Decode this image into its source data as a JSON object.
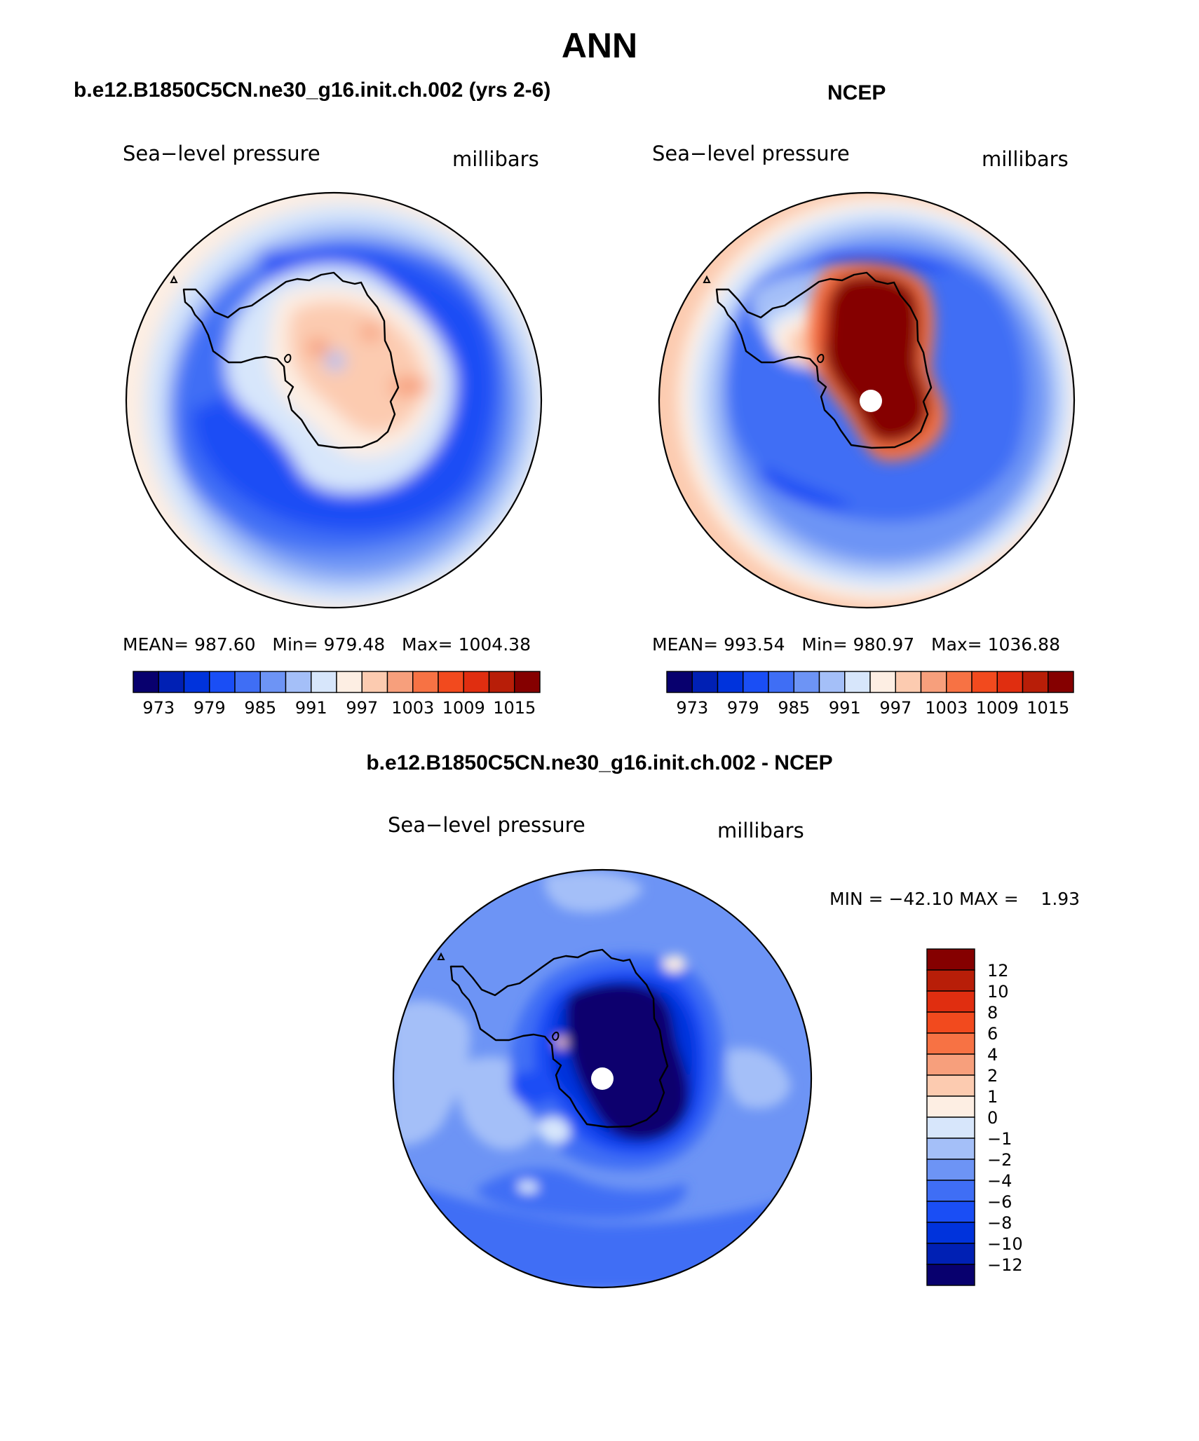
{
  "page_title": "ANN",
  "colors": {
    "scale": [
      "#08006e",
      "#0020b4",
      "#0033dc",
      "#1a4ef5",
      "#3f6ef5",
      "#6d94f5",
      "#a4bff8",
      "#d7e6fb",
      "#fdeee3",
      "#fccbb0",
      "#f79f7c",
      "#f77244",
      "#f24a1e",
      "#e02e10",
      "#b81e08",
      "#850000"
    ]
  },
  "panels": {
    "model": {
      "header": "b.e12.B1850C5CN.ne30_g16.init.ch.002 (yrs 2-6)",
      "left_label": "Sea−level pressure",
      "right_label": "millibars",
      "stats": {
        "mean_label": "MEAN=",
        "mean": "987.60",
        "min_label": "Min=",
        "min": "979.48",
        "max_label": "Max=",
        "max": "1004.38"
      }
    },
    "obs": {
      "header": "NCEP",
      "left_label": "Sea−level pressure",
      "right_label": "millibars",
      "stats": {
        "mean_label": "MEAN=",
        "mean": "993.54",
        "min_label": "Min=",
        "min": "980.97",
        "max_label": "Max=",
        "max": "1036.88"
      }
    },
    "diff": {
      "header": "b.e12.B1850C5CN.ne30_g16.init.ch.002 - NCEP",
      "left_label": "Sea−level pressure",
      "right_label": "millibars",
      "minmax": "MIN = −42.10 MAX =    1.93"
    }
  },
  "colorbar_levels": {
    "horizontal_ticks": [
      "973",
      "979",
      "985",
      "991",
      "997",
      "1003",
      "1009",
      "1015"
    ],
    "vertical_ticks": [
      "12",
      "10",
      "8",
      "6",
      "4",
      "2",
      "1",
      "0",
      "−1",
      "−2",
      "−4",
      "−6",
      "−8",
      "−10",
      "−12"
    ]
  }
}
